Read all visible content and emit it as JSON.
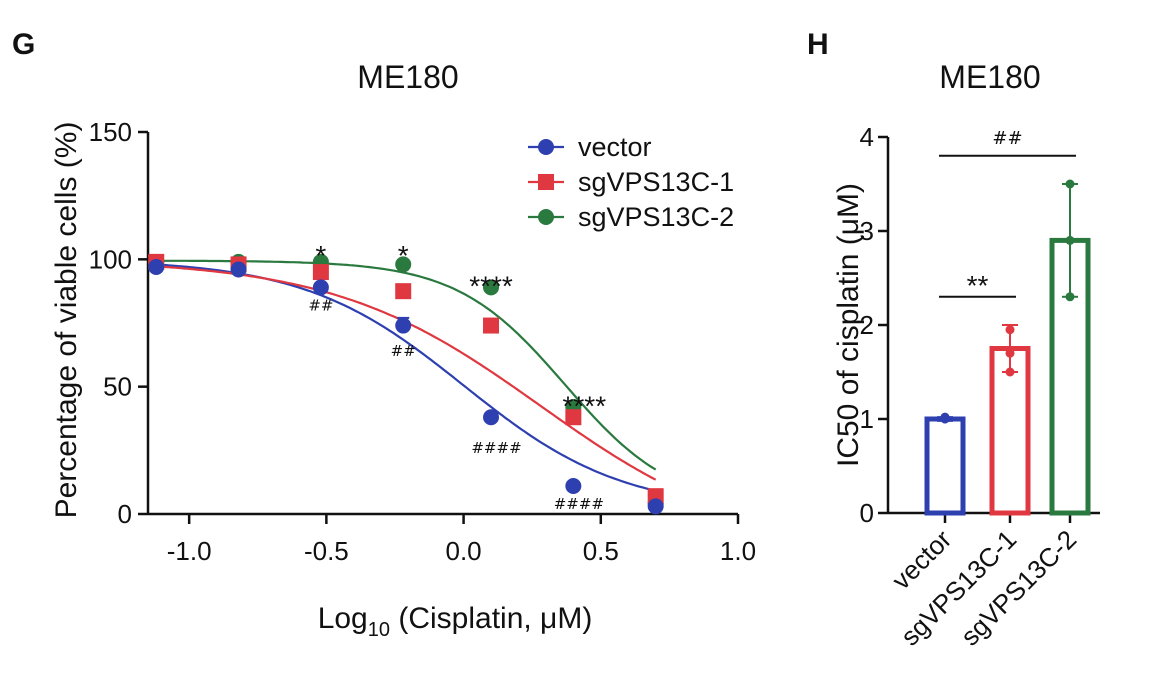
{
  "panels": {
    "G": {
      "letter": "G"
    },
    "H": {
      "letter": "H"
    }
  },
  "chart_data": [
    {
      "id": "G",
      "type": "line",
      "title": "ME180",
      "xlabel_main": "Log",
      "xlabel_sub": "10",
      "xlabel_rest": " (Cisplatin, μM)",
      "ylabel": "Percentage of viable cells (%)",
      "xlim": [
        -1.15,
        1.0
      ],
      "ylim": [
        0,
        150
      ],
      "x_ticks": [
        -1.0,
        -0.5,
        0.0,
        0.5,
        1.0
      ],
      "x_tick_labels": [
        "-1.0",
        "-0.5",
        "0.0",
        "0.5",
        "1.0"
      ],
      "y_ticks": [
        0,
        50,
        100,
        150
      ],
      "y_tick_labels": [
        "0",
        "50",
        "100",
        "150"
      ],
      "legend_position": "top-right",
      "series": [
        {
          "name": "vector",
          "color": "#2e3fb0",
          "marker": "circle",
          "x": [
            -1.12,
            -0.82,
            -0.52,
            -0.22,
            0.1,
            0.4,
            0.7
          ],
          "y": [
            97,
            96,
            89,
            74,
            38,
            11,
            3
          ],
          "err": [
            0,
            0,
            0,
            3,
            1,
            1,
            0
          ],
          "fit": {
            "top": 100,
            "bottom": 1,
            "logIC50": 0.0,
            "hill": 1.5
          }
        },
        {
          "name": "sgVPS13C-1",
          "color": "#e03840",
          "marker": "square",
          "x": [
            -1.12,
            -0.82,
            -0.52,
            -0.22,
            0.1,
            0.4,
            0.7
          ],
          "y": [
            99,
            98,
            95,
            87.5,
            74,
            38,
            7
          ],
          "err": [
            0,
            0,
            0,
            0,
            0,
            0,
            0
          ],
          "fit": {
            "top": 100,
            "bottom": -15,
            "logIC50": 0.28,
            "hill": 1.15
          },
          "fit_xmax": 0.7
        },
        {
          "name": "sgVPS13C-2",
          "color": "#2a7a40",
          "marker": "circle",
          "x": [
            -1.12,
            -0.82,
            -0.52,
            -0.22,
            0.1,
            0.4,
            0.7
          ],
          "y": [
            99,
            99,
            99,
            98,
            89,
            42,
            4
          ],
          "err": [
            0,
            0,
            0,
            0,
            0,
            0,
            0
          ],
          "fit": {
            "top": 99.5,
            "bottom": 2,
            "logIC50": 0.37,
            "hill": 2.2
          }
        }
      ],
      "annotations": [
        {
          "text": "*",
          "x": -0.52,
          "y": 104,
          "style": "star"
        },
        {
          "text": "*",
          "x": -0.22,
          "y": 104,
          "style": "star"
        },
        {
          "text": "****",
          "x": 0.1,
          "y": 92,
          "style": "star"
        },
        {
          "text": "****",
          "x": 0.44,
          "y": 45,
          "style": "star"
        },
        {
          "text": "##",
          "x": -0.52,
          "y": 80,
          "style": "hash"
        },
        {
          "text": "##",
          "x": -0.22,
          "y": 62,
          "style": "hash"
        },
        {
          "text": "####",
          "x": 0.12,
          "y": 24,
          "style": "hash"
        },
        {
          "text": "####",
          "x": 0.42,
          "y": 2,
          "style": "hash"
        }
      ]
    },
    {
      "id": "H",
      "type": "bar",
      "title": "ME180",
      "ylabel": "IC50 of cisplatin (μM)",
      "ylim": [
        0,
        4
      ],
      "y_ticks": [
        0,
        1,
        2,
        3,
        4
      ],
      "y_tick_labels": [
        "0",
        "1",
        "2",
        "3",
        "4"
      ],
      "categories": [
        "vector",
        "sgVPS13C-1",
        "sgVPS13C-2"
      ],
      "values": [
        1.0,
        1.75,
        2.9
      ],
      "err": [
        0.02,
        0.25,
        0.6
      ],
      "colors": [
        "#2e3fb0",
        "#e03840",
        "#2a7a40"
      ],
      "points": [
        [
          1.0,
          1.0,
          1.02
        ],
        [
          1.5,
          1.7,
          1.95
        ],
        [
          2.3,
          2.9,
          3.5
        ]
      ],
      "brackets": [
        {
          "from": 0,
          "to": 1,
          "y": 2.3,
          "text": "**",
          "style": "star"
        },
        {
          "from": 0,
          "to": 2,
          "y": 3.8,
          "text": "##",
          "style": "hash"
        }
      ]
    }
  ]
}
